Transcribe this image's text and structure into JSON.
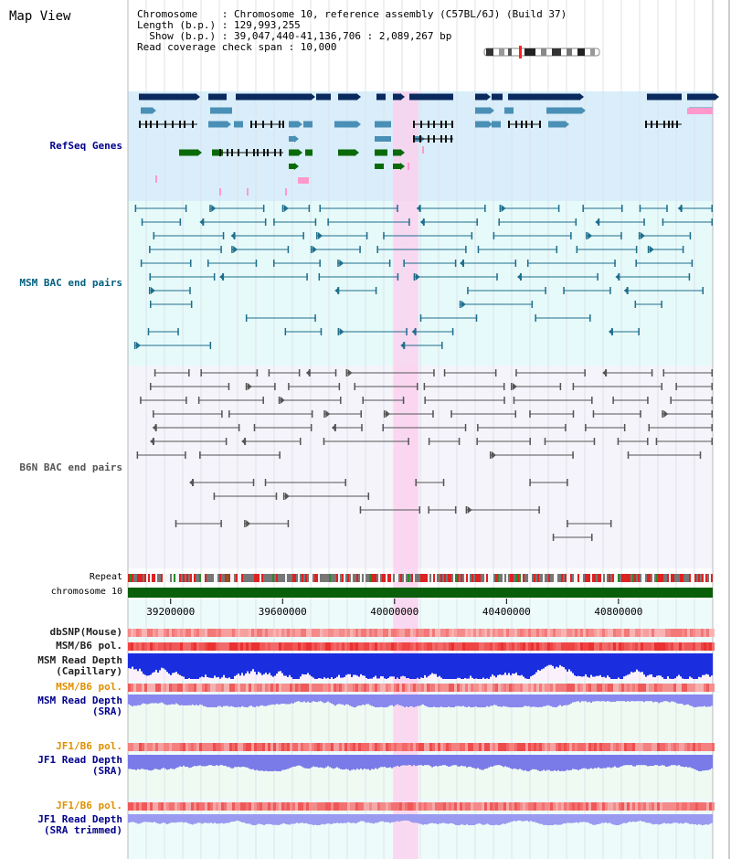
{
  "page": {
    "title": "Map View"
  },
  "info": {
    "lines": [
      "Chromosome    : Chromosome 10, reference assembly (C57BL/6J) (Build 37)",
      "Length (b.p.) : 129,993,255",
      "  Show (b.p.) : 39,047,440-41,136,706 : 2,089,267 bp",
      "Read coverage check span : 10,000"
    ]
  },
  "tracks": {
    "refseq": "RefSeq Genes",
    "msm_bac": "MSM BAC end pairs",
    "b6n_bac": "B6N BAC end pairs",
    "repeat": "Repeat",
    "chromosome": "chromosome 10",
    "dbsnp": "dbSNP(Mouse)",
    "msm_b6_pol": "MSM/B6 pol.",
    "msm_depth_cap_1": "MSM Read Depth",
    "msm_depth_cap_2": "(Capillary)",
    "msm_b6_pol_2": "MSM/B6 pol.",
    "msm_depth_sra_1": "MSM Read Depth",
    "msm_depth_sra_2": "(SRA)",
    "jf1_b6_pol": "JF1/B6 pol.",
    "jf1_depth_sra_1": "JF1 Read Depth",
    "jf1_depth_sra_2": "(SRA)",
    "jf1_b6_pol_2": "JF1/B6 pol.",
    "jf1_depth_trim_1": "JF1 Read Depth",
    "jf1_depth_trim_2": "(SRA trimmed)"
  },
  "axis": {
    "start": 39047440,
    "end": 41136706,
    "ticks": [
      {
        "value": 39200000,
        "label": "39200000"
      },
      {
        "value": 39600000,
        "label": "39600000"
      },
      {
        "value": 40000000,
        "label": "40000000"
      },
      {
        "value": 40400000,
        "label": "40400000"
      },
      {
        "value": 40800000,
        "label": "40800000"
      }
    ]
  },
  "highlight": {
    "start": 39995000,
    "end": 40085000
  },
  "colors": {
    "refseq_bg": "#d9eefa",
    "msm_bac_bg": "#e6fafa",
    "b6n_bac_bg": "#f4f4fa",
    "lower_bg": "#effaf3",
    "highlight": "#ffccee",
    "navy": "#0a2a5e",
    "teal_gene": "#4a8fb5",
    "green_gene": "#0a6a0a",
    "pink_gene": "#ff99cc",
    "msm_line": "#1f6e8c",
    "b6n_line": "#555555",
    "chrom_bar": "#0a5f0a",
    "label_navy": "#00008b",
    "label_teal": "#006080",
    "label_orange": "#e09000",
    "label_black": "#222222"
  }
}
